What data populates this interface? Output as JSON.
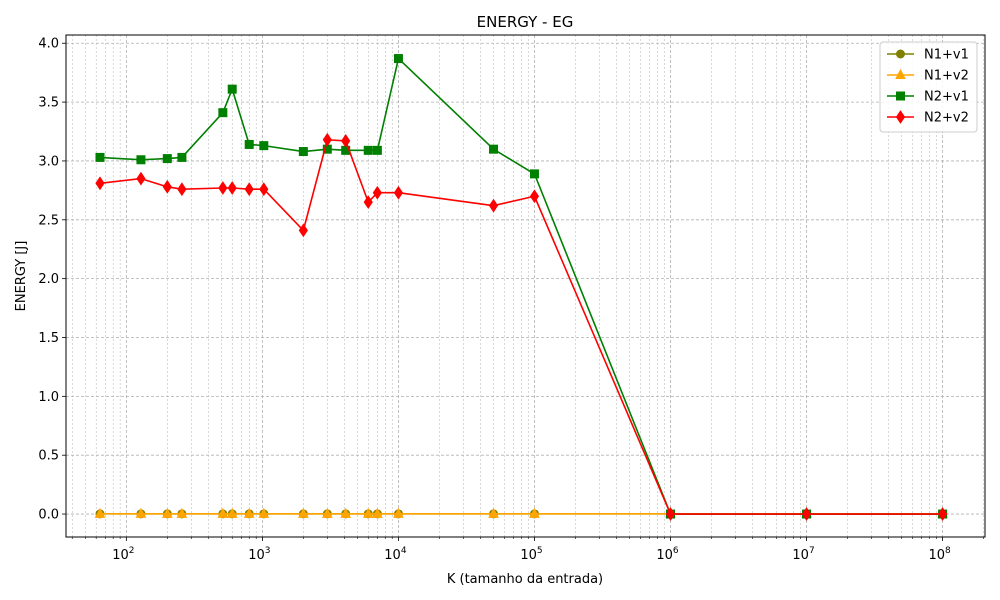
{
  "chart_data": {
    "type": "line",
    "title": "ENERGY - EG",
    "xlabel": "K (tamanho da entrada)",
    "ylabel": "ENERGY [J]",
    "xscale": "log",
    "xlim": [
      36,
      205000000
    ],
    "ylim": [
      -0.195,
      4.07
    ],
    "grid": true,
    "legend_position": "top-right",
    "x_ticks": [
      {
        "value": 100,
        "base": "10",
        "exp": "2"
      },
      {
        "value": 1000,
        "base": "10",
        "exp": "3"
      },
      {
        "value": 10000,
        "base": "10",
        "exp": "4"
      },
      {
        "value": 100000,
        "base": "10",
        "exp": "5"
      },
      {
        "value": 1000000,
        "base": "10",
        "exp": "6"
      },
      {
        "value": 10000000,
        "base": "10",
        "exp": "7"
      },
      {
        "value": 100000000,
        "base": "10",
        "exp": "8"
      }
    ],
    "y_ticks": [
      {
        "value": 0.0,
        "label": "0.0"
      },
      {
        "value": 0.5,
        "label": "0.5"
      },
      {
        "value": 1.0,
        "label": "1.0"
      },
      {
        "value": 1.5,
        "label": "1.5"
      },
      {
        "value": 2.0,
        "label": "2.0"
      },
      {
        "value": 2.5,
        "label": "2.5"
      },
      {
        "value": 3.0,
        "label": "3.0"
      },
      {
        "value": 3.5,
        "label": "3.5"
      },
      {
        "value": 4.0,
        "label": "4.0"
      }
    ],
    "series": [
      {
        "name": "N1+v1",
        "color": "#808000",
        "marker": "circle",
        "x": [
          64,
          128,
          200,
          256,
          512,
          600,
          800,
          1024,
          2000,
          3000,
          4096,
          6000,
          7000,
          10000,
          50000,
          100000,
          1000000,
          10000000,
          100000000
        ],
        "y": [
          0.002,
          0.002,
          0.002,
          0.002,
          0.002,
          0.002,
          0.002,
          0.002,
          0.002,
          0.002,
          0.002,
          0.002,
          0.002,
          0.002,
          0.002,
          0.002,
          0.002,
          0.002,
          0.002
        ]
      },
      {
        "name": "N1+v2",
        "color": "#ffa500",
        "marker": "triangle",
        "x": [
          64,
          128,
          200,
          256,
          512,
          600,
          800,
          1024,
          2000,
          3000,
          4096,
          6000,
          7000,
          10000,
          50000,
          100000,
          1000000,
          10000000,
          100000000
        ],
        "y": [
          0.002,
          0.002,
          0.002,
          0.002,
          0.002,
          0.002,
          0.002,
          0.002,
          0.002,
          0.002,
          0.002,
          0.002,
          0.002,
          0.002,
          0.002,
          0.002,
          0.002,
          0.002,
          0.002
        ]
      },
      {
        "name": "N2+v1",
        "color": "#008000",
        "marker": "square",
        "x": [
          64,
          128,
          200,
          256,
          512,
          600,
          800,
          1024,
          2000,
          3000,
          4096,
          6000,
          7000,
          10000,
          50000,
          100000,
          1000000,
          10000000,
          100000000
        ],
        "y": [
          3.03,
          3.01,
          3.02,
          3.03,
          3.41,
          3.61,
          3.14,
          3.13,
          3.08,
          3.1,
          3.09,
          3.09,
          3.09,
          3.87,
          3.1,
          2.89,
          0.0,
          0.0,
          0.0
        ]
      },
      {
        "name": "N2+v2",
        "color": "#ff0000",
        "marker": "diamond",
        "x": [
          64,
          128,
          200,
          256,
          512,
          600,
          800,
          1024,
          2000,
          3000,
          4096,
          6000,
          7000,
          10000,
          50000,
          100000,
          1000000,
          10000000,
          100000000
        ],
        "y": [
          2.81,
          2.85,
          2.78,
          2.76,
          2.77,
          2.77,
          2.76,
          2.76,
          2.41,
          3.18,
          3.17,
          2.65,
          2.73,
          2.73,
          2.62,
          2.7,
          0.0,
          0.0,
          0.0
        ]
      }
    ]
  }
}
